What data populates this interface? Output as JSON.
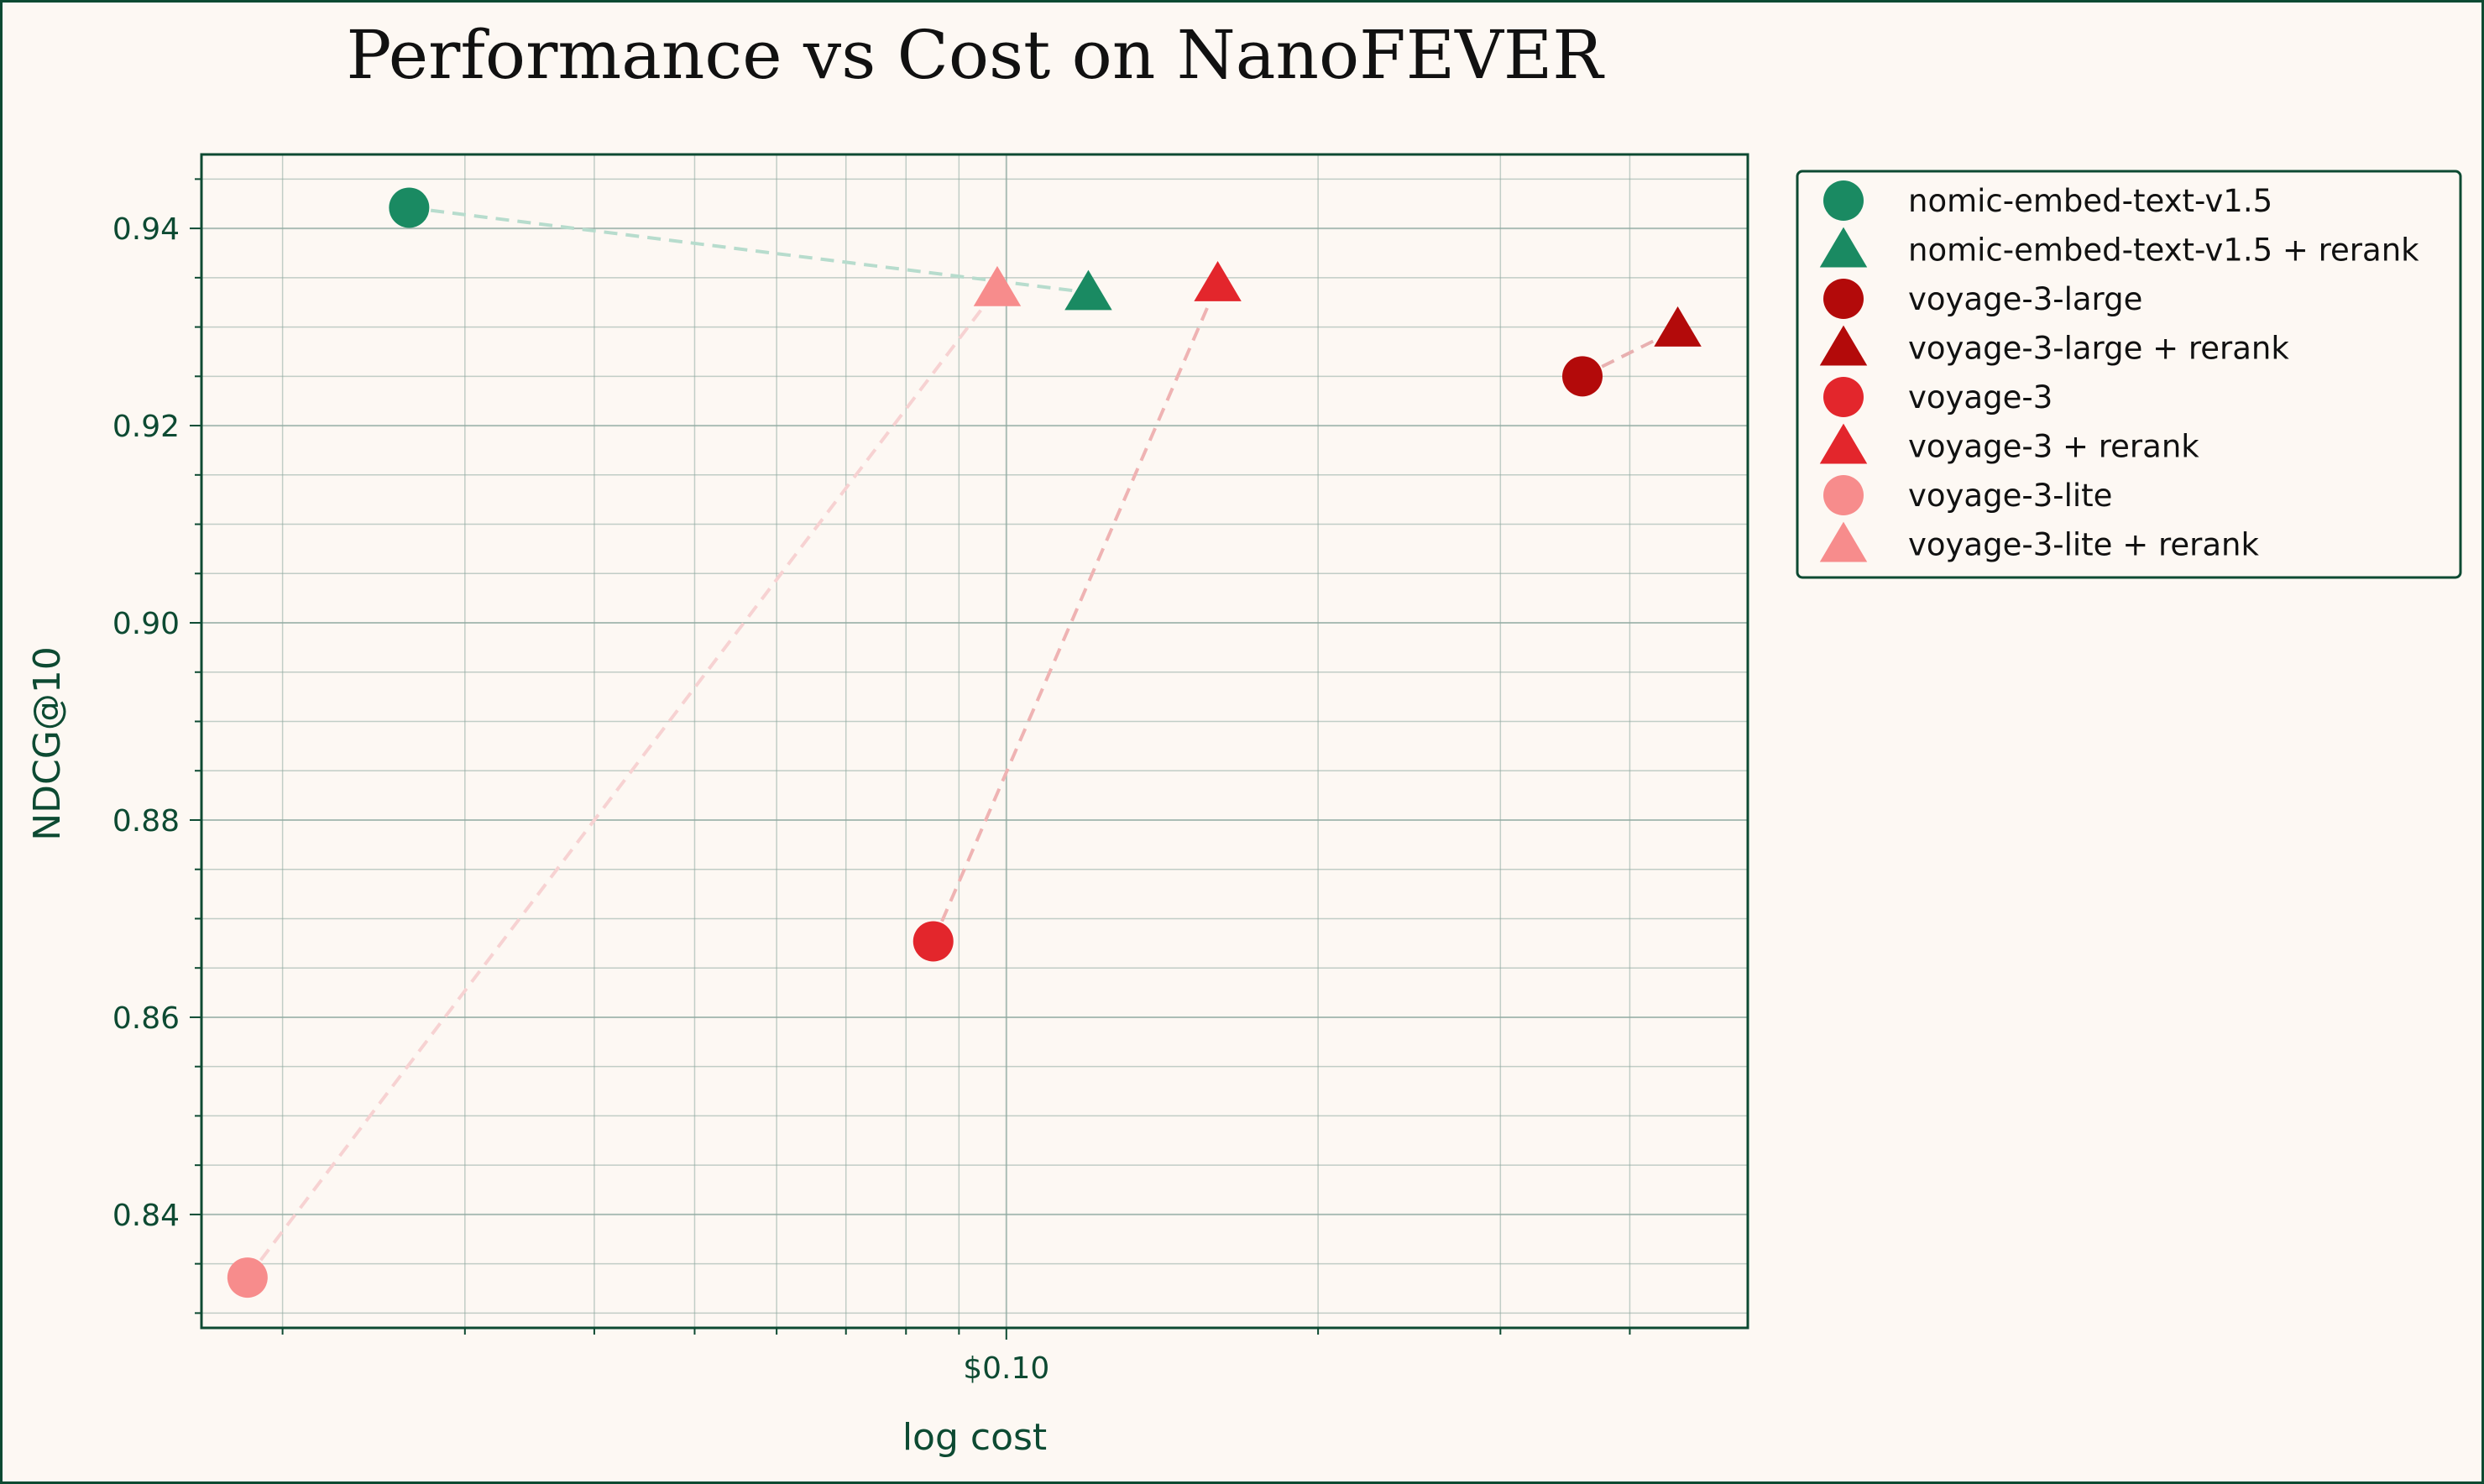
{
  "chart_data": {
    "type": "scatter",
    "title": "Performance vs Cost on NanoFEVER",
    "xlabel": "log cost",
    "ylabel": "NDCG@10",
    "x_scale": "log",
    "xlim": [
      0.0167,
      0.52
    ],
    "ylim": [
      0.8285,
      0.9475
    ],
    "x_major_ticks": [
      {
        "value": 0.1,
        "label": "$0.10"
      }
    ],
    "x_minor_ticks": [
      0.02,
      0.03,
      0.04,
      0.05,
      0.06,
      0.07,
      0.08,
      0.09,
      0.2,
      0.3,
      0.4
    ],
    "y_major_ticks": [
      {
        "value": 0.84,
        "label": "0.84"
      },
      {
        "value": 0.86,
        "label": "0.86"
      },
      {
        "value": 0.88,
        "label": "0.88"
      },
      {
        "value": 0.9,
        "label": "0.90"
      },
      {
        "value": 0.92,
        "label": "0.92"
      },
      {
        "value": 0.94,
        "label": "0.94"
      }
    ],
    "y_minor_step": 0.005,
    "grid": true,
    "legend_position": "outside-top-right",
    "series": [
      {
        "name": "nomic-embed-text-v1.5",
        "marker": "circle",
        "color": "#1a8a62",
        "x": 0.0265,
        "y": 0.9421
      },
      {
        "name": "nomic-embed-text-v1.5 + rerank",
        "marker": "triangle",
        "color": "#1a8a62",
        "x": 0.12,
        "y": 0.9335
      },
      {
        "name": "voyage-3-large",
        "marker": "circle",
        "color": "#b30a0a",
        "x": 0.36,
        "y": 0.925
      },
      {
        "name": "voyage-3-large + rerank",
        "marker": "triangle",
        "color": "#b30a0a",
        "x": 0.445,
        "y": 0.9298
      },
      {
        "name": "voyage-3",
        "marker": "circle",
        "color": "#e3262c",
        "x": 0.085,
        "y": 0.8677
      },
      {
        "name": "voyage-3 + rerank",
        "marker": "triangle",
        "color": "#e3262c",
        "x": 0.16,
        "y": 0.9344
      },
      {
        "name": "voyage-3-lite",
        "marker": "circle",
        "color": "#f78c8c",
        "x": 0.0185,
        "y": 0.8336
      },
      {
        "name": "voyage-3-lite + rerank",
        "marker": "triangle",
        "color": "#f78c8c",
        "x": 0.098,
        "y": 0.9339
      }
    ],
    "connections": [
      {
        "from": "nomic-embed-text-v1.5",
        "to": "nomic-embed-text-v1.5 + rerank",
        "color": "#b7dccd"
      },
      {
        "from": "voyage-3-large",
        "to": "voyage-3-large + rerank",
        "color": "#e8b0b0"
      },
      {
        "from": "voyage-3",
        "to": "voyage-3 + rerank",
        "color": "#efb3b3"
      },
      {
        "from": "voyage-3-lite",
        "to": "voyage-3-lite + rerank",
        "color": "#f7d2d2"
      }
    ]
  },
  "colors": {
    "background": "#fdf8f3",
    "border": "#0d4a32",
    "axis": "#0d4a32",
    "grid": "#8fa9a0"
  }
}
